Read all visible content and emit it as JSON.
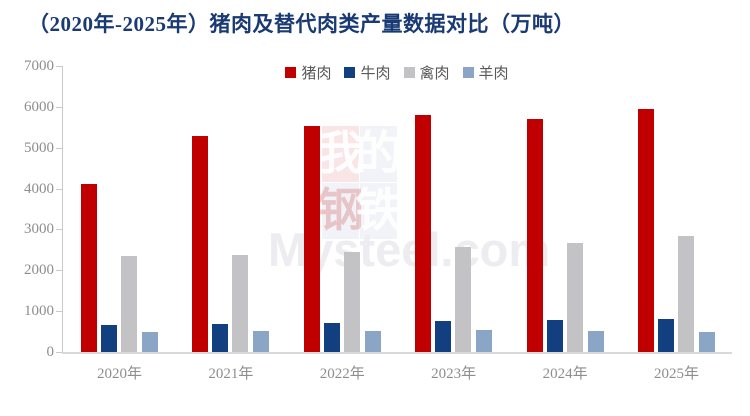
{
  "title": "（2020年-2025年）猪肉及替代肉类产量数据对比（万吨）",
  "watermark": {
    "grid_chars": [
      "我",
      "的",
      "钢",
      "铁"
    ],
    "text": "Mysteel.com"
  },
  "colors": {
    "title": "#1A3A74",
    "axis_labels": "#8E8E8E",
    "legend_text": "#595959",
    "axis_line": "#C9C9C9",
    "baseline": "#D9D9D9",
    "pork": "#C00000",
    "beef": "#123F80",
    "poultry": "#C3C3C5",
    "mutton": "#8AA5C6"
  },
  "chart_data": {
    "type": "bar",
    "title": "（2020年-2025年）猪肉及替代肉类产量数据对比（万吨）",
    "unit": "万吨",
    "categories": [
      "2020年",
      "2021年",
      "2022年",
      "2023年",
      "2024年",
      "2025年"
    ],
    "series": [
      {
        "name": "猪肉",
        "color": "#C00000",
        "values": [
          4113,
          5296,
          5541,
          5794,
          5706,
          5950
        ]
      },
      {
        "name": "牛肉",
        "color": "#123F80",
        "values": [
          672,
          698,
          718,
          753,
          779,
          805
        ]
      },
      {
        "name": "禽肉",
        "color": "#C3C3C5",
        "values": [
          2361,
          2380,
          2443,
          2563,
          2660,
          2830
        ]
      },
      {
        "name": "羊肉",
        "color": "#8AA5C6",
        "values": [
          492,
          514,
          525,
          531,
          518,
          495
        ]
      }
    ],
    "ylim": [
      0,
      7000
    ],
    "ytick_step": 1000,
    "ytick_labels": [
      "0",
      "1000",
      "2000",
      "3000",
      "4000",
      "5000",
      "6000",
      "7000"
    ],
    "grid": false,
    "legend_position": "top-center",
    "xlabel": "",
    "ylabel": ""
  }
}
